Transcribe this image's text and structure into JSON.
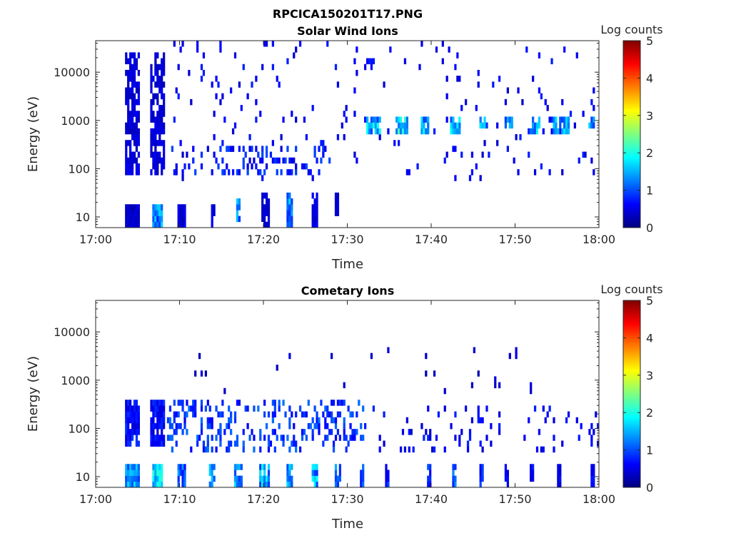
{
  "figure_title": "RPCICA150201T17.PNG",
  "colorscale": [
    "#00007f",
    "#0000ff",
    "#007fff",
    "#00ffff",
    "#7fff7f",
    "#ffff00",
    "#ff7f00",
    "#ff0000",
    "#7f0000"
  ],
  "chart_data": [
    {
      "type": "heatmap",
      "title": "Solar Wind Ions",
      "xlabel": "Time",
      "ylabel": "Energy (eV)",
      "x_ticks": [
        "17:00",
        "17:10",
        "17:20",
        "17:30",
        "17:40",
        "17:50",
        "18:00"
      ],
      "x_range": [
        "17:00",
        "18:00"
      ],
      "y_scale": "log",
      "y_ticks": [
        "10",
        "100",
        "1000",
        "10000"
      ],
      "y_range": [
        6,
        45000
      ],
      "colorbar": {
        "label": "Log counts",
        "ticks": [
          "0",
          "1",
          "2",
          "3",
          "4",
          "5"
        ],
        "range": [
          0,
          5
        ]
      },
      "features": [
        {
          "t_start": 3.5,
          "t_end": 5.2,
          "e_min": 70,
          "e_max": 28000,
          "log_counts_max": 0.6,
          "density": 0.75
        },
        {
          "t_start": 6.5,
          "t_end": 8.3,
          "e_min": 70,
          "e_max": 28000,
          "log_counts_max": 0.6,
          "density": 0.7
        },
        {
          "t_start": 3.5,
          "t_end": 5.2,
          "e_min": 6,
          "e_max": 18,
          "log_counts_max": 0.5,
          "density": 1.0
        },
        {
          "t_start": 6.8,
          "t_end": 8.0,
          "e_min": 6,
          "e_max": 18,
          "log_counts_max": 1.7,
          "density": 1.0
        },
        {
          "t_start": 8.5,
          "t_end": 60,
          "e_min": 50,
          "e_max": 40000,
          "log_counts_max": 0.8,
          "density": 0.035
        },
        {
          "t_start": 8.5,
          "t_end": 28,
          "e_min": 80,
          "e_max": 300,
          "log_counts_max": 1.0,
          "density": 0.22
        },
        {
          "t_start": 32.2,
          "t_end": 34.0,
          "e_min": 500,
          "e_max": 1100,
          "log_counts_max": 2.0,
          "density": 0.85
        },
        {
          "t_start": 35.8,
          "t_end": 37.3,
          "e_min": 500,
          "e_max": 1200,
          "log_counts_max": 2.3,
          "density": 0.9
        },
        {
          "t_start": 38.8,
          "t_end": 39.8,
          "e_min": 500,
          "e_max": 1100,
          "log_counts_max": 2.0,
          "density": 0.85
        },
        {
          "t_start": 42.2,
          "t_end": 43.6,
          "e_min": 500,
          "e_max": 1200,
          "log_counts_max": 2.0,
          "density": 0.85
        },
        {
          "t_start": 45.8,
          "t_end": 46.8,
          "e_min": 600,
          "e_max": 1100,
          "log_counts_max": 1.8,
          "density": 0.85
        },
        {
          "t_start": 48.8,
          "t_end": 49.8,
          "e_min": 600,
          "e_max": 1100,
          "log_counts_max": 1.8,
          "density": 0.85
        },
        {
          "t_start": 51.7,
          "t_end": 53.0,
          "e_min": 500,
          "e_max": 1200,
          "log_counts_max": 2.0,
          "density": 0.85
        },
        {
          "t_start": 54.6,
          "t_end": 56.6,
          "e_min": 550,
          "e_max": 1200,
          "log_counts_max": 1.9,
          "density": 0.85
        },
        {
          "t_start": 58.8,
          "t_end": 59.6,
          "e_min": 600,
          "e_max": 1100,
          "log_counts_max": 1.8,
          "density": 0.85
        },
        {
          "t_start": 9.8,
          "t_end": 10.8,
          "e_min": 6,
          "e_max": 20,
          "log_counts_max": 0.6,
          "density": 0.9
        },
        {
          "t_start": 13.7,
          "t_end": 14.2,
          "e_min": 6,
          "e_max": 20,
          "log_counts_max": 0.8,
          "density": 0.9
        },
        {
          "t_start": 16.7,
          "t_end": 17.3,
          "e_min": 8,
          "e_max": 25,
          "log_counts_max": 1.8,
          "density": 0.9
        },
        {
          "t_start": 19.7,
          "t_end": 20.7,
          "e_min": 6,
          "e_max": 30,
          "log_counts_max": 0.6,
          "density": 0.9
        },
        {
          "t_start": 22.8,
          "t_end": 23.6,
          "e_min": 6,
          "e_max": 30,
          "log_counts_max": 1.8,
          "density": 0.9
        },
        {
          "t_start": 25.8,
          "t_end": 26.5,
          "e_min": 6,
          "e_max": 30,
          "log_counts_max": 0.7,
          "density": 0.9
        },
        {
          "t_start": 28.6,
          "t_end": 29.1,
          "e_min": 12,
          "e_max": 30,
          "log_counts_max": 0.6,
          "density": 0.8
        }
      ]
    },
    {
      "type": "heatmap",
      "title": "Cometary Ions",
      "xlabel": "Time",
      "ylabel": "Energy (eV)",
      "x_ticks": [
        "17:00",
        "17:10",
        "17:20",
        "17:30",
        "17:40",
        "17:50",
        "18:00"
      ],
      "x_range": [
        "17:00",
        "18:00"
      ],
      "y_scale": "log",
      "y_ticks": [
        "10",
        "100",
        "1000",
        "10000"
      ],
      "y_range": [
        6,
        45000
      ],
      "colorbar": {
        "label": "Log counts",
        "ticks": [
          "0",
          "1",
          "2",
          "3",
          "4",
          "5"
        ],
        "range": [
          0,
          5
        ]
      },
      "features": [
        {
          "t_start": 3.5,
          "t_end": 5.2,
          "e_min": 40,
          "e_max": 450,
          "log_counts_max": 0.9,
          "density": 0.85
        },
        {
          "t_start": 6.5,
          "t_end": 8.3,
          "e_min": 40,
          "e_max": 450,
          "log_counts_max": 0.9,
          "density": 0.8
        },
        {
          "t_start": 3.5,
          "t_end": 5.2,
          "e_min": 6,
          "e_max": 18,
          "log_counts_max": 1.9,
          "density": 1.0
        },
        {
          "t_start": 6.8,
          "t_end": 8.0,
          "e_min": 6,
          "e_max": 18,
          "log_counts_max": 2.2,
          "density": 1.0
        },
        {
          "t_start": 8.5,
          "t_end": 32,
          "e_min": 30,
          "e_max": 400,
          "log_counts_max": 1.2,
          "density": 0.28
        },
        {
          "t_start": 32,
          "t_end": 60,
          "e_min": 30,
          "e_max": 300,
          "log_counts_max": 0.8,
          "density": 0.07
        },
        {
          "t_start": 8.5,
          "t_end": 60,
          "e_min": 500,
          "e_max": 5000,
          "log_counts_max": 0.5,
          "density": 0.01
        },
        {
          "t_start": 9.8,
          "t_end": 10.8,
          "e_min": 6,
          "e_max": 18,
          "log_counts_max": 1.5,
          "density": 0.9
        },
        {
          "t_start": 13.6,
          "t_end": 14.2,
          "e_min": 6,
          "e_max": 18,
          "log_counts_max": 1.8,
          "density": 0.9
        },
        {
          "t_start": 16.6,
          "t_end": 17.4,
          "e_min": 6,
          "e_max": 20,
          "log_counts_max": 1.8,
          "density": 0.9
        },
        {
          "t_start": 19.6,
          "t_end": 20.8,
          "e_min": 6,
          "e_max": 20,
          "log_counts_max": 2.0,
          "density": 0.9
        },
        {
          "t_start": 22.8,
          "t_end": 23.6,
          "e_min": 6,
          "e_max": 20,
          "log_counts_max": 1.9,
          "density": 0.9
        },
        {
          "t_start": 25.8,
          "t_end": 26.6,
          "e_min": 6,
          "e_max": 20,
          "log_counts_max": 1.9,
          "density": 0.9
        },
        {
          "t_start": 28.6,
          "t_end": 29.2,
          "e_min": 6,
          "e_max": 20,
          "log_counts_max": 1.5,
          "density": 0.9
        },
        {
          "t_start": 31.4,
          "t_end": 31.9,
          "e_min": 6,
          "e_max": 18,
          "log_counts_max": 1.2,
          "density": 0.9
        },
        {
          "t_start": 34.6,
          "t_end": 35.1,
          "e_min": 6,
          "e_max": 18,
          "log_counts_max": 1.0,
          "density": 0.9
        },
        {
          "t_start": 39.6,
          "t_end": 40.1,
          "e_min": 6,
          "e_max": 18,
          "log_counts_max": 1.2,
          "density": 0.9
        },
        {
          "t_start": 42.6,
          "t_end": 43.0,
          "e_min": 6,
          "e_max": 18,
          "log_counts_max": 1.6,
          "density": 0.9
        },
        {
          "t_start": 45.8,
          "t_end": 46.2,
          "e_min": 6,
          "e_max": 18,
          "log_counts_max": 1.0,
          "density": 0.9
        },
        {
          "t_start": 48.8,
          "t_end": 49.2,
          "e_min": 6,
          "e_max": 18,
          "log_counts_max": 0.8,
          "density": 0.9
        },
        {
          "t_start": 51.8,
          "t_end": 52.2,
          "e_min": 6,
          "e_max": 18,
          "log_counts_max": 0.8,
          "density": 0.9
        },
        {
          "t_start": 55.0,
          "t_end": 55.4,
          "e_min": 6,
          "e_max": 18,
          "log_counts_max": 0.8,
          "density": 0.9
        },
        {
          "t_start": 59.0,
          "t_end": 59.4,
          "e_min": 6,
          "e_max": 18,
          "log_counts_max": 0.8,
          "density": 0.9
        }
      ]
    }
  ]
}
